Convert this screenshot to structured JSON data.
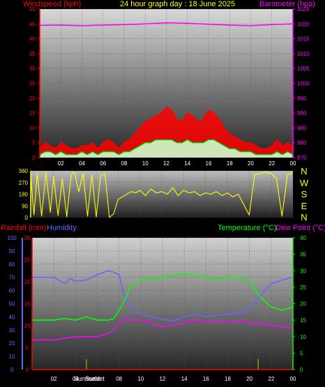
{
  "header": {
    "wind_label": "Windspeed (kph)",
    "title": "24 hour graph day : 18 June 2025",
    "baro_label": "Barometer (hpa)"
  },
  "lower_header": {
    "rain_label": "Rainfall (mm)",
    "humidity_label": "Humidity",
    "temp_label": "Temperature (°C)",
    "dew_label": "Dew Point (°C)"
  },
  "direction_labels": [
    "N",
    "W",
    "S",
    "E",
    "N"
  ],
  "sunrise_label": "Sunrise",
  "sunset_label": "Sunset",
  "colors": {
    "wind_avg": "#00cc00",
    "wind_gust": "#ff0000",
    "wind_fill": "#ccffcc",
    "barometer": "#ff00ff",
    "direction": "#ffff00",
    "temperature": "#00ff00",
    "dew_point": "#ff00ff",
    "humidity": "#6666ff",
    "rainfall": "#ff0000",
    "wind_axis": "#ff0000",
    "baro_axis": "#ff00ff",
    "rain_axis": "#ff0000",
    "hum_axis": "#6666ff",
    "temp_axis": "#00ff00"
  },
  "chart_data": [
    {
      "type": "area",
      "name": "wind-barometer",
      "x_ticks": [
        "02",
        "04",
        "06",
        "08",
        "10",
        "12",
        "14",
        "16",
        "18",
        "20",
        "22",
        "00"
      ],
      "xlim": [
        0,
        24
      ],
      "left_axis": {
        "label": "Windspeed (kph)",
        "ylim": [
          0,
          50
        ],
        "ticks": [
          0,
          5,
          10,
          15,
          20,
          25,
          30,
          35,
          40,
          45,
          50
        ]
      },
      "right_axis": {
        "label": "Barometer (hpa)",
        "ylim": [
          975,
          1025
        ],
        "ticks": [
          975,
          980,
          985,
          990,
          995,
          1000,
          1005,
          1010,
          1015,
          1020,
          1025
        ]
      },
      "series": [
        {
          "name": "Gust",
          "axis": "left",
          "x": [
            0,
            0.5,
            1,
            1.5,
            2,
            2.5,
            3,
            3.5,
            4,
            4.5,
            5,
            5.5,
            6,
            6.5,
            7,
            7.5,
            8,
            8.5,
            9,
            9.5,
            10,
            10.5,
            11,
            11.5,
            12,
            12.5,
            13,
            13.5,
            14,
            14.5,
            15,
            15.5,
            16,
            16.5,
            17,
            17.5,
            18,
            18.5,
            19,
            19.5,
            20,
            20.5,
            21,
            21.5,
            22,
            22.5,
            23,
            23.5,
            24
          ],
          "values": [
            3,
            5,
            4,
            3,
            5,
            4,
            3,
            3,
            4,
            4,
            5,
            3,
            5,
            6,
            5,
            3,
            5,
            6,
            8,
            10,
            12,
            13,
            14,
            15,
            17,
            16,
            13,
            12,
            15,
            14,
            12,
            13,
            16,
            15,
            13,
            10,
            8,
            7,
            6,
            5,
            5,
            4,
            3,
            3,
            4,
            6,
            4,
            5,
            4
          ]
        },
        {
          "name": "Average",
          "axis": "left",
          "x": [
            0,
            0.5,
            1,
            1.5,
            2,
            2.5,
            3,
            3.5,
            4,
            4.5,
            5,
            5.5,
            6,
            6.5,
            7,
            7.5,
            8,
            8.5,
            9,
            9.5,
            10,
            10.5,
            11,
            11.5,
            12,
            12.5,
            13,
            13.5,
            14,
            14.5,
            15,
            15.5,
            16,
            16.5,
            17,
            17.5,
            18,
            18.5,
            19,
            19.5,
            20,
            20.5,
            21,
            21.5,
            22,
            22.5,
            23,
            23.5,
            24
          ],
          "values": [
            1,
            2,
            2,
            1,
            2,
            1,
            1,
            1,
            2,
            1,
            2,
            1,
            2,
            2,
            2,
            1,
            2,
            2,
            3,
            4,
            5,
            5,
            6,
            6,
            6,
            6,
            5,
            5,
            6,
            5,
            5,
            5,
            6,
            6,
            5,
            4,
            3,
            3,
            2,
            2,
            2,
            1,
            1,
            1,
            1,
            2,
            1,
            2,
            1
          ]
        },
        {
          "name": "Barometer",
          "axis": "right",
          "x": [
            0,
            2,
            4,
            6,
            8,
            10,
            12,
            14,
            16,
            18,
            20,
            22,
            24
          ],
          "values": [
            1019.5,
            1019.6,
            1019.4,
            1019.6,
            1019.8,
            1020.0,
            1020.4,
            1020.2,
            1019.9,
            1019.6,
            1019.4,
            1019.8,
            1020.0
          ]
        }
      ]
    },
    {
      "type": "line",
      "name": "wind-direction",
      "x_ticks": [
        "02",
        "04",
        "06",
        "08",
        "10",
        "12",
        "14",
        "16",
        "18",
        "20",
        "22",
        "00"
      ],
      "xlim": [
        0,
        24
      ],
      "ylim": [
        0,
        360
      ],
      "y_ticks": [
        0,
        90,
        180,
        270,
        360
      ],
      "series": [
        {
          "name": "Direction",
          "x": [
            0,
            0.3,
            0.6,
            1,
            1.4,
            1.8,
            2.1,
            2.5,
            2.9,
            3.3,
            3.7,
            4,
            4.4,
            4.8,
            5.2,
            5.6,
            6,
            6.4,
            6.8,
            7.2,
            7.6,
            8,
            8.4,
            8.8,
            9.2,
            9.6,
            10,
            10.5,
            11,
            11.5,
            12,
            12.5,
            13,
            13.5,
            14,
            14.5,
            15,
            15.5,
            16,
            16.5,
            17,
            17.5,
            18,
            18.5,
            19,
            19.5,
            20,
            20.5,
            21,
            21.5,
            22,
            22.5,
            23,
            23.5,
            24
          ],
          "values": [
            330,
            20,
            340,
            10,
            350,
            40,
            320,
            15,
            300,
            5,
            330,
            350,
            200,
            340,
            10,
            330,
            5,
            320,
            340,
            0,
            30,
            140,
            160,
            180,
            200,
            190,
            210,
            170,
            220,
            190,
            200,
            180,
            230,
            170,
            210,
            190,
            200,
            170,
            190,
            180,
            200,
            170,
            190,
            160,
            180,
            100,
            20,
            330,
            340,
            350,
            340,
            300,
            10,
            330,
            345
          ]
        }
      ]
    },
    {
      "type": "line",
      "name": "temperature-humidity",
      "x_ticks": [
        "02",
        "04",
        "06",
        "08",
        "10",
        "12",
        "14",
        "16",
        "18",
        "20",
        "22",
        "00"
      ],
      "xlim": [
        0,
        24
      ],
      "humidity_axis": {
        "label": "Humidity",
        "ylim": [
          0,
          100
        ],
        "ticks": [
          0,
          10,
          20,
          30,
          40,
          50,
          60,
          70,
          80,
          90,
          100
        ]
      },
      "rain_axis": {
        "label": "Rainfall (mm)",
        "ylim": [
          0,
          30
        ],
        "ticks": [
          0,
          5,
          10,
          15,
          20,
          25,
          30
        ]
      },
      "temp_axis": {
        "label": "Temperature (°C)",
        "ylim": [
          0,
          40
        ],
        "ticks": [
          0,
          5,
          10,
          15,
          20,
          25,
          30,
          35,
          40
        ]
      },
      "series": [
        {
          "name": "Humidity",
          "axis": "humidity",
          "x": [
            0,
            1,
            2,
            3,
            3.5,
            4,
            5,
            6,
            7,
            7.5,
            8,
            8.5,
            9,
            10,
            11,
            12,
            13,
            14,
            15,
            16,
            17,
            18,
            19,
            19.5,
            20,
            21,
            22,
            23,
            24
          ],
          "values": [
            70,
            70,
            70,
            65,
            69,
            67,
            68,
            72,
            75,
            74,
            72,
            55,
            48,
            42,
            40,
            38,
            37,
            40,
            42,
            40,
            41,
            42,
            43,
            44,
            47,
            56,
            65,
            68,
            70
          ]
        },
        {
          "name": "Temperature",
          "axis": "temp",
          "x": [
            0,
            1,
            2,
            3,
            4,
            5,
            6,
            7,
            7.5,
            8,
            8.5,
            9,
            10,
            11,
            12,
            13,
            14,
            15,
            16,
            17,
            18,
            19,
            19.5,
            20,
            21,
            22,
            23,
            24
          ],
          "values": [
            15,
            15,
            15,
            15.5,
            15,
            16,
            15,
            15,
            15.5,
            18,
            21,
            25,
            27,
            27.5,
            28,
            28.5,
            29,
            28.5,
            28,
            27.5,
            28,
            28,
            27.5,
            27,
            22,
            19,
            18,
            19
          ]
        },
        {
          "name": "Dew Point",
          "axis": "temp",
          "x": [
            0,
            1,
            2,
            3,
            4,
            5,
            6,
            7,
            7.5,
            8,
            8.5,
            9,
            10,
            11,
            12,
            13,
            14,
            15,
            16,
            17,
            18,
            19,
            19.5,
            20,
            21,
            22,
            23,
            24
          ],
          "values": [
            9,
            9,
            9,
            9.5,
            10,
            10,
            10,
            11,
            12,
            14,
            15.5,
            15,
            15,
            14,
            13,
            13.5,
            14,
            15,
            14.5,
            14.5,
            14.5,
            14.5,
            15,
            14,
            14,
            13.5,
            13,
            12.5
          ]
        },
        {
          "name": "Rainfall",
          "axis": "rain",
          "x": [
            0,
            24
          ],
          "values": [
            0,
            0
          ]
        }
      ],
      "sunrise_x": 5.0,
      "sunset_x": 20.8
    }
  ]
}
